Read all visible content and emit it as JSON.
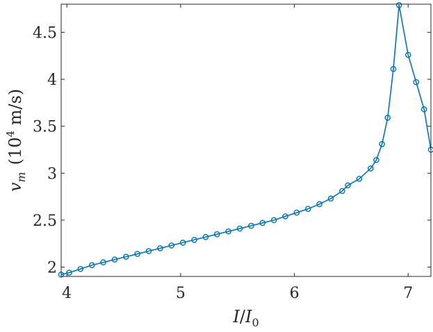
{
  "chart_data": {
    "type": "line",
    "xlabel": {
      "base": "I",
      "slash": "/",
      "base2": "I",
      "sub": "0"
    },
    "ylabel": {
      "var": "v",
      "sub": "m",
      "open": "(10",
      "sup": "4",
      "unit": " m/s)"
    },
    "xlim": [
      3.95,
      7.2
    ],
    "ylim": [
      1.9,
      4.8
    ],
    "xticks": [
      4,
      5,
      6,
      7
    ],
    "xtick_labels": [
      "4",
      "5",
      "6",
      "7"
    ],
    "yticks": [
      2,
      2.5,
      3,
      3.5,
      4,
      4.5
    ],
    "ytick_labels": [
      "2",
      "2.5",
      "3",
      "3.5",
      "4",
      "4.5"
    ],
    "grid": false,
    "legend": "none",
    "series": [
      {
        "color": "#0072BD",
        "marker": "circle-open",
        "x": [
          3.95,
          4.02,
          4.12,
          4.22,
          4.32,
          4.42,
          4.52,
          4.62,
          4.72,
          4.82,
          4.92,
          5.02,
          5.12,
          5.22,
          5.32,
          5.42,
          5.52,
          5.62,
          5.72,
          5.82,
          5.92,
          6.02,
          6.12,
          6.22,
          6.32,
          6.42,
          6.47,
          6.57,
          6.67,
          6.72,
          6.77,
          6.82,
          6.87,
          6.92,
          7.0,
          7.07,
          7.14,
          7.2
        ],
        "y": [
          1.92,
          1.94,
          1.98,
          2.02,
          2.05,
          2.08,
          2.11,
          2.14,
          2.17,
          2.2,
          2.23,
          2.26,
          2.29,
          2.32,
          2.35,
          2.38,
          2.41,
          2.44,
          2.47,
          2.5,
          2.54,
          2.58,
          2.62,
          2.67,
          2.73,
          2.81,
          2.87,
          2.94,
          3.05,
          3.14,
          3.31,
          3.59,
          4.11,
          4.79,
          4.26,
          3.97,
          3.68,
          3.25
        ]
      }
    ]
  }
}
